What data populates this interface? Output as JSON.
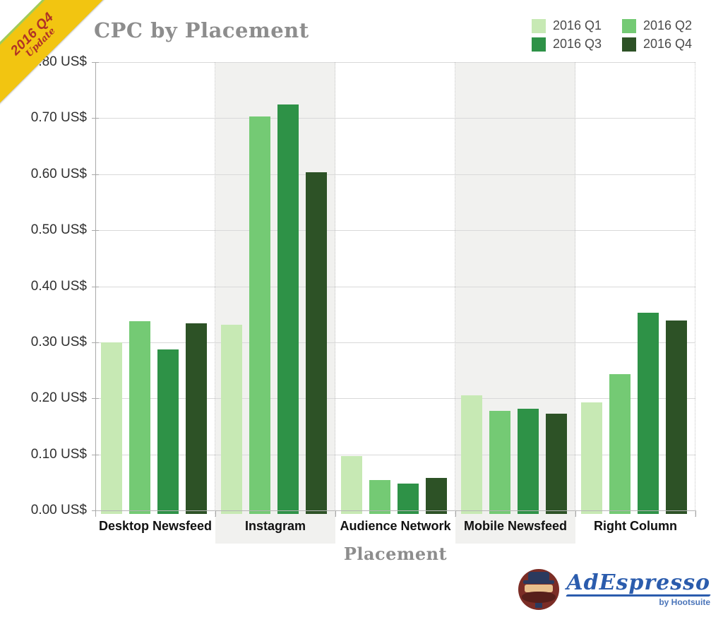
{
  "ribbon": {
    "line1": "2016 Q4",
    "line2": "Update",
    "bg_color": "#f2c511",
    "edge_color": "#9fcc5a",
    "text_color": "#b03226"
  },
  "chart_data": {
    "type": "bar",
    "title": "CPC by Placement",
    "xlabel": "Placement",
    "ylabel": "",
    "categories": [
      "Desktop Newsfeed",
      "Instagram",
      "Audience Network",
      "Mobile Newsfeed",
      "Right Column"
    ],
    "shaded_categories": [
      "Instagram",
      "Mobile Newsfeed"
    ],
    "series": [
      {
        "name": "2016 Q1",
        "color": "#c7e9b4",
        "values": [
          0.3,
          0.331,
          0.097,
          0.206,
          0.193
        ]
      },
      {
        "name": "2016 Q2",
        "color": "#74ca74",
        "values": [
          0.338,
          0.703,
          0.054,
          0.178,
          0.243
        ]
      },
      {
        "name": "2016 Q3",
        "color": "#2e9247",
        "values": [
          0.287,
          0.724,
          0.048,
          0.182,
          0.353
        ]
      },
      {
        "name": "2016 Q4",
        "color": "#2d5226",
        "values": [
          0.334,
          0.603,
          0.058,
          0.172,
          0.339
        ]
      }
    ],
    "ylim": [
      0,
      0.8
    ],
    "ytick_step": 0.1,
    "yticks": [
      {
        "value": 0.0,
        "label": "0.00 US$"
      },
      {
        "value": 0.1,
        "label": "0.10 US$"
      },
      {
        "value": 0.2,
        "label": "0.20 US$"
      },
      {
        "value": 0.3,
        "label": "0.30 US$"
      },
      {
        "value": 0.4,
        "label": "0.40 US$"
      },
      {
        "value": 0.5,
        "label": "0.50 US$"
      },
      {
        "value": 0.6,
        "label": "0.60 US$"
      },
      {
        "value": 0.7,
        "label": "0.70 US$"
      },
      {
        "value": 0.8,
        "label": "0.80 US$"
      }
    ],
    "grid": true,
    "legend_position": "top-right",
    "shade_color": "#f1f1ef",
    "gridline_color": "#d9d9d9"
  },
  "footer_logo": {
    "brand": "AdEspresso",
    "byline": "by Hootsuite",
    "brand_color": "#2b5cad"
  }
}
